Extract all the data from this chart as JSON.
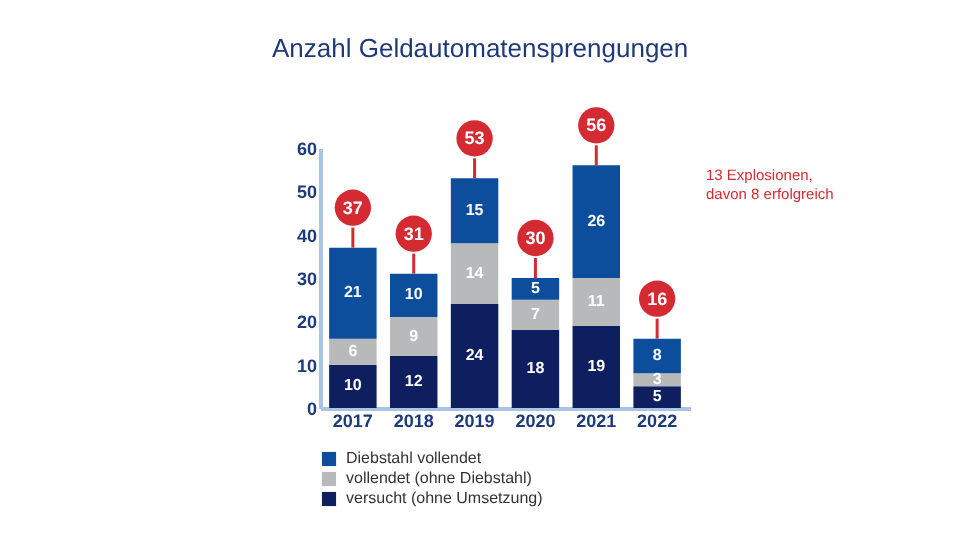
{
  "chart_data": {
    "type": "bar",
    "title": "Anzahl Geldautomatensprengungen",
    "stacked": true,
    "categories": [
      "2017",
      "2018",
      "2019",
      "2020",
      "2021",
      "2022"
    ],
    "series": [
      {
        "name": "versucht (ohne Umsetzung)",
        "color": "#0d1f5e",
        "values": [
          10,
          12,
          24,
          18,
          19,
          5
        ]
      },
      {
        "name": "vollendet (ohne Diebstahl)",
        "color": "#b8b9bb",
        "values": [
          6,
          9,
          14,
          7,
          11,
          3
        ]
      },
      {
        "name": "Diebstahl vollendet",
        "color": "#0c4d9c",
        "values": [
          21,
          10,
          15,
          5,
          26,
          8
        ]
      }
    ],
    "totals": [
      "37",
      "31",
      "53",
      "30",
      "56",
      "16"
    ],
    "data_labels": true,
    "ylim": [
      0,
      60
    ],
    "yticks": [
      0,
      10,
      20,
      30,
      40,
      50,
      60
    ],
    "grid": false,
    "legend": "bottom",
    "annotations": [
      "13 Explosionen,\ndavon 8 erfolgreich"
    ]
  }
}
